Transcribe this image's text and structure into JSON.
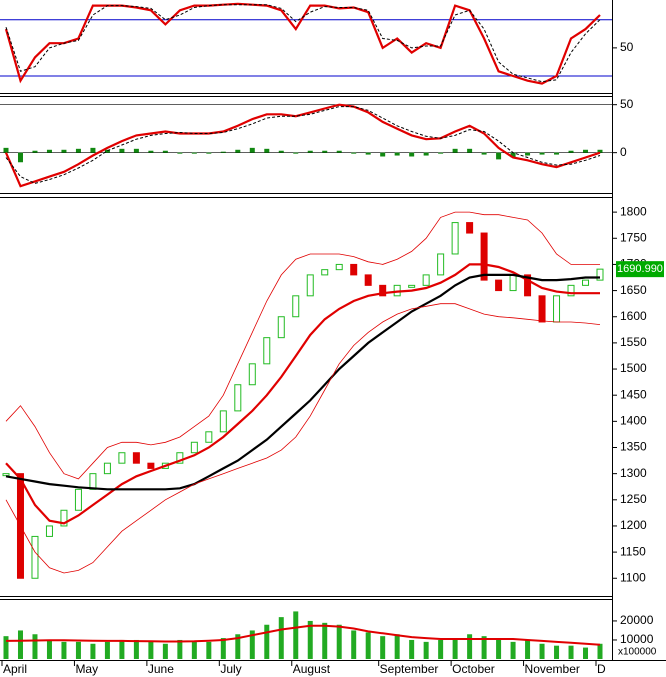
{
  "chart_data": [
    {
      "type": "line",
      "ylim": [
        3,
        101
      ],
      "yticks": [
        50
      ],
      "hlines": [
        20,
        80
      ],
      "hline_color": "#0000cc",
      "series": [
        {
          "name": "%K",
          "color": "#e00000",
          "width": 2.2,
          "dash": false,
          "values": [
            70,
            15,
            40,
            55,
            55,
            60,
            95,
            95,
            95,
            93,
            90,
            75,
            90,
            95,
            95,
            96,
            97,
            96,
            95,
            90,
            70,
            95,
            95,
            92,
            93,
            88,
            50,
            60,
            45,
            55,
            50,
            95,
            90,
            60,
            25,
            20,
            15,
            12,
            20,
            60,
            70,
            85
          ]
        },
        {
          "name": "%D",
          "color": "#000000",
          "width": 1,
          "dash": true,
          "values": [
            72,
            25,
            30,
            50,
            55,
            58,
            85,
            95,
            95,
            94,
            92,
            80,
            85,
            93,
            95,
            96,
            96,
            96,
            96,
            92,
            78,
            88,
            94,
            93,
            93,
            90,
            60,
            58,
            50,
            52,
            52,
            85,
            90,
            70,
            35,
            22,
            18,
            14,
            16,
            45,
            65,
            80
          ]
        }
      ]
    },
    {
      "type": "line",
      "ylim": [
        -41,
        58
      ],
      "yticks": [
        50,
        0
      ],
      "series": [
        {
          "name": "Histogram",
          "color": "#118811",
          "kind": "bar",
          "values": [
            5,
            -10,
            2,
            3,
            3,
            4,
            5,
            3,
            4,
            4,
            2,
            2,
            -1,
            0,
            0,
            1,
            3,
            5,
            4,
            2,
            0,
            2,
            2,
            2,
            0,
            -2,
            -4,
            -3,
            -4,
            -3,
            0,
            4,
            4,
            -2,
            -7,
            -5,
            -3,
            -2,
            -2,
            2,
            3,
            3
          ]
        },
        {
          "name": "MACD",
          "color": "#e00000",
          "width": 2.2,
          "dash": false,
          "values": [
            0,
            -35,
            -30,
            -25,
            -20,
            -12,
            -3,
            5,
            12,
            18,
            20,
            22,
            20,
            20,
            20,
            22,
            28,
            35,
            40,
            40,
            38,
            42,
            46,
            50,
            48,
            42,
            32,
            25,
            18,
            14,
            15,
            22,
            28,
            20,
            5,
            -5,
            -8,
            -12,
            -15,
            -10,
            -5,
            0
          ]
        },
        {
          "name": "Signal",
          "color": "#000000",
          "width": 1,
          "dash": true,
          "values": [
            -5,
            -25,
            -32,
            -28,
            -23,
            -16,
            -8,
            2,
            8,
            14,
            18,
            20,
            21,
            20,
            20,
            21,
            25,
            30,
            36,
            38,
            38,
            40,
            44,
            48,
            48,
            44,
            36,
            28,
            22,
            17,
            15,
            18,
            24,
            22,
            12,
            0,
            -5,
            -10,
            -13,
            -12,
            -8,
            -3
          ]
        }
      ]
    },
    {
      "type": "candlestick",
      "ylim": [
        1068,
        1827
      ],
      "yticks": [
        1100,
        1150,
        1200,
        1250,
        1300,
        1350,
        1400,
        1450,
        1500,
        1550,
        1600,
        1650,
        1700,
        1750,
        1800
      ],
      "up_color": "#22bb22",
      "down_color": "#dd0000",
      "close": [
        1300,
        1100,
        1180,
        1200,
        1230,
        1270,
        1300,
        1320,
        1340,
        1320,
        1310,
        1320,
        1340,
        1360,
        1380,
        1420,
        1470,
        1510,
        1560,
        1600,
        1640,
        1680,
        1690,
        1700,
        1680,
        1660,
        1640,
        1660,
        1660,
        1680,
        1720,
        1780,
        1760,
        1670,
        1650,
        1680,
        1640,
        1590,
        1640,
        1660,
        1670,
        1690.99
      ],
      "last_price": {
        "value": 1690.99,
        "label": "1690.990"
      },
      "last_price_color": "#00aa00",
      "series": [
        {
          "name": "MA20",
          "color": "#e00000",
          "width": 2.2,
          "dash": false,
          "values": [
            1320,
            1290,
            1240,
            1210,
            1205,
            1220,
            1240,
            1260,
            1280,
            1295,
            1305,
            1315,
            1325,
            1335,
            1350,
            1370,
            1395,
            1420,
            1450,
            1485,
            1525,
            1565,
            1595,
            1615,
            1630,
            1640,
            1645,
            1648,
            1650,
            1655,
            1665,
            1680,
            1700,
            1700,
            1695,
            1685,
            1670,
            1655,
            1648,
            1645,
            1645,
            1645
          ]
        },
        {
          "name": "MA50",
          "color": "#000000",
          "width": 2.2,
          "dash": false,
          "values": [
            1295,
            1290,
            1285,
            1280,
            1277,
            1274,
            1272,
            1270,
            1270,
            1270,
            1270,
            1270,
            1272,
            1280,
            1295,
            1310,
            1325,
            1345,
            1365,
            1390,
            1415,
            1440,
            1470,
            1500,
            1525,
            1550,
            1570,
            1590,
            1610,
            1625,
            1640,
            1660,
            1675,
            1680,
            1680,
            1680,
            1675,
            1670,
            1670,
            1672,
            1675,
            1675
          ]
        },
        {
          "name": "Upper band",
          "color": "#e00000",
          "width": 0.8,
          "dash": false,
          "values": [
            1400,
            1430,
            1390,
            1340,
            1300,
            1290,
            1320,
            1350,
            1360,
            1360,
            1355,
            1360,
            1370,
            1390,
            1410,
            1450,
            1510,
            1570,
            1630,
            1680,
            1710,
            1720,
            1720,
            1720,
            1715,
            1705,
            1700,
            1710,
            1725,
            1750,
            1790,
            1800,
            1800,
            1795,
            1795,
            1790,
            1785,
            1760,
            1720,
            1700,
            1700,
            1700
          ]
        },
        {
          "name": "Lower band",
          "color": "#e00000",
          "width": 0.8,
          "dash": false,
          "values": [
            1250,
            1200,
            1150,
            1120,
            1110,
            1115,
            1130,
            1160,
            1190,
            1210,
            1230,
            1250,
            1265,
            1280,
            1290,
            1300,
            1310,
            1320,
            1330,
            1345,
            1370,
            1410,
            1460,
            1510,
            1545,
            1570,
            1590,
            1605,
            1615,
            1620,
            1625,
            1625,
            1615,
            1605,
            1600,
            1598,
            1595,
            1592,
            1590,
            1590,
            1588,
            1585
          ]
        }
      ]
    },
    {
      "type": "bar",
      "ylim": [
        0,
        31000
      ],
      "yticks": [
        20000,
        10000
      ],
      "y_unit_label": "x100000",
      "color": "#22aa22",
      "categories": [
        "April",
        null,
        null,
        null,
        null,
        "May",
        null,
        null,
        null,
        null,
        "June",
        null,
        null,
        null,
        null,
        "July",
        null,
        null,
        null,
        null,
        "August",
        null,
        null,
        null,
        null,
        null,
        "September",
        null,
        null,
        null,
        null,
        "October",
        null,
        null,
        null,
        null,
        "November",
        null,
        null,
        null,
        null,
        "D"
      ],
      "values": [
        12000,
        15000,
        13000,
        10000,
        9000,
        9000,
        8000,
        9000,
        10000,
        10000,
        9000,
        8000,
        10000,
        9000,
        9000,
        11000,
        13000,
        15000,
        18000,
        22000,
        25000,
        20000,
        19000,
        18000,
        15000,
        14000,
        12000,
        13000,
        10000,
        9000,
        10000,
        11000,
        13000,
        12000,
        11000,
        9000,
        10000,
        8000,
        7000,
        7000,
        6000,
        8000
      ],
      "series": [
        {
          "name": "Volume MA",
          "color": "#e00000",
          "width": 2,
          "dash": false,
          "values": [
            9500,
            9600,
            9700,
            9800,
            9800,
            9700,
            9600,
            9500,
            9500,
            9400,
            9300,
            9200,
            9200,
            9300,
            9600,
            10000,
            11000,
            12500,
            14000,
            15500,
            16500,
            17500,
            17500,
            17000,
            16000,
            14500,
            13500,
            12500,
            11500,
            11000,
            10500,
            10500,
            10500,
            10500,
            10500,
            10500,
            10000,
            9500,
            9000,
            8500,
            8000,
            7500
          ]
        }
      ]
    }
  ]
}
